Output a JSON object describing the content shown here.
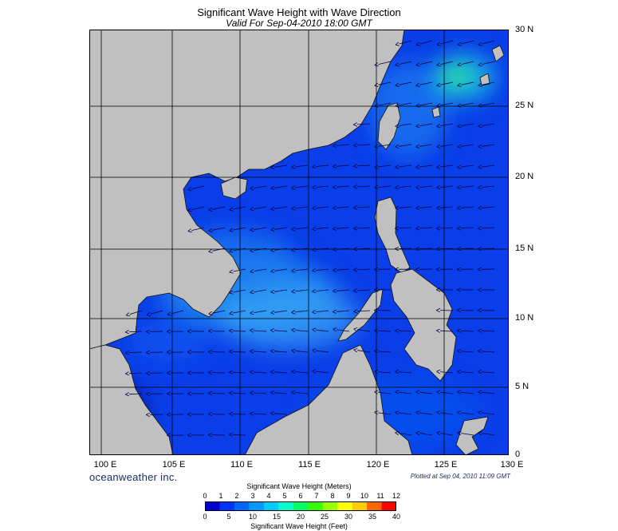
{
  "header": {
    "title": "Significant Wave Height with Wave Direction",
    "subtitle": "Valid For Sep-04-2010 18:00 GMT"
  },
  "map": {
    "lat_labels": [
      "30 N",
      "25 N",
      "20 N",
      "15 N",
      "10 N",
      "5 N",
      "0"
    ],
    "lon_labels": [
      "100 E",
      "105 E",
      "110 E",
      "115 E",
      "120 E",
      "125 E",
      "130 E"
    ],
    "lat_range": [
      0,
      30
    ],
    "lon_range": [
      99.5,
      130
    ],
    "land_color": "#c0c0c0",
    "grid_color": "#000000"
  },
  "footer": {
    "company": "oceanweather inc.",
    "plotted": "Plotted at Sep 04, 2010 11:09 GMT"
  },
  "colorbar": {
    "title_meters": "Significant Wave Height (Meters)",
    "title_feet": "Significant Wave Height (Feet)",
    "meter_ticks": [
      "0",
      "1",
      "2",
      "3",
      "4",
      "5",
      "6",
      "7",
      "8",
      "9",
      "10",
      "11",
      "12"
    ],
    "feet_ticks": [
      "0",
      "5",
      "10",
      "15",
      "20",
      "25",
      "30",
      "35",
      "40"
    ],
    "colors": [
      "#0000cc",
      "#0033ff",
      "#0066ff",
      "#0099ff",
      "#00ccff",
      "#00ffcc",
      "#00ff66",
      "#33ff00",
      "#99ff00",
      "#ffff00",
      "#ffcc00",
      "#ff6600",
      "#ff0000"
    ]
  }
}
